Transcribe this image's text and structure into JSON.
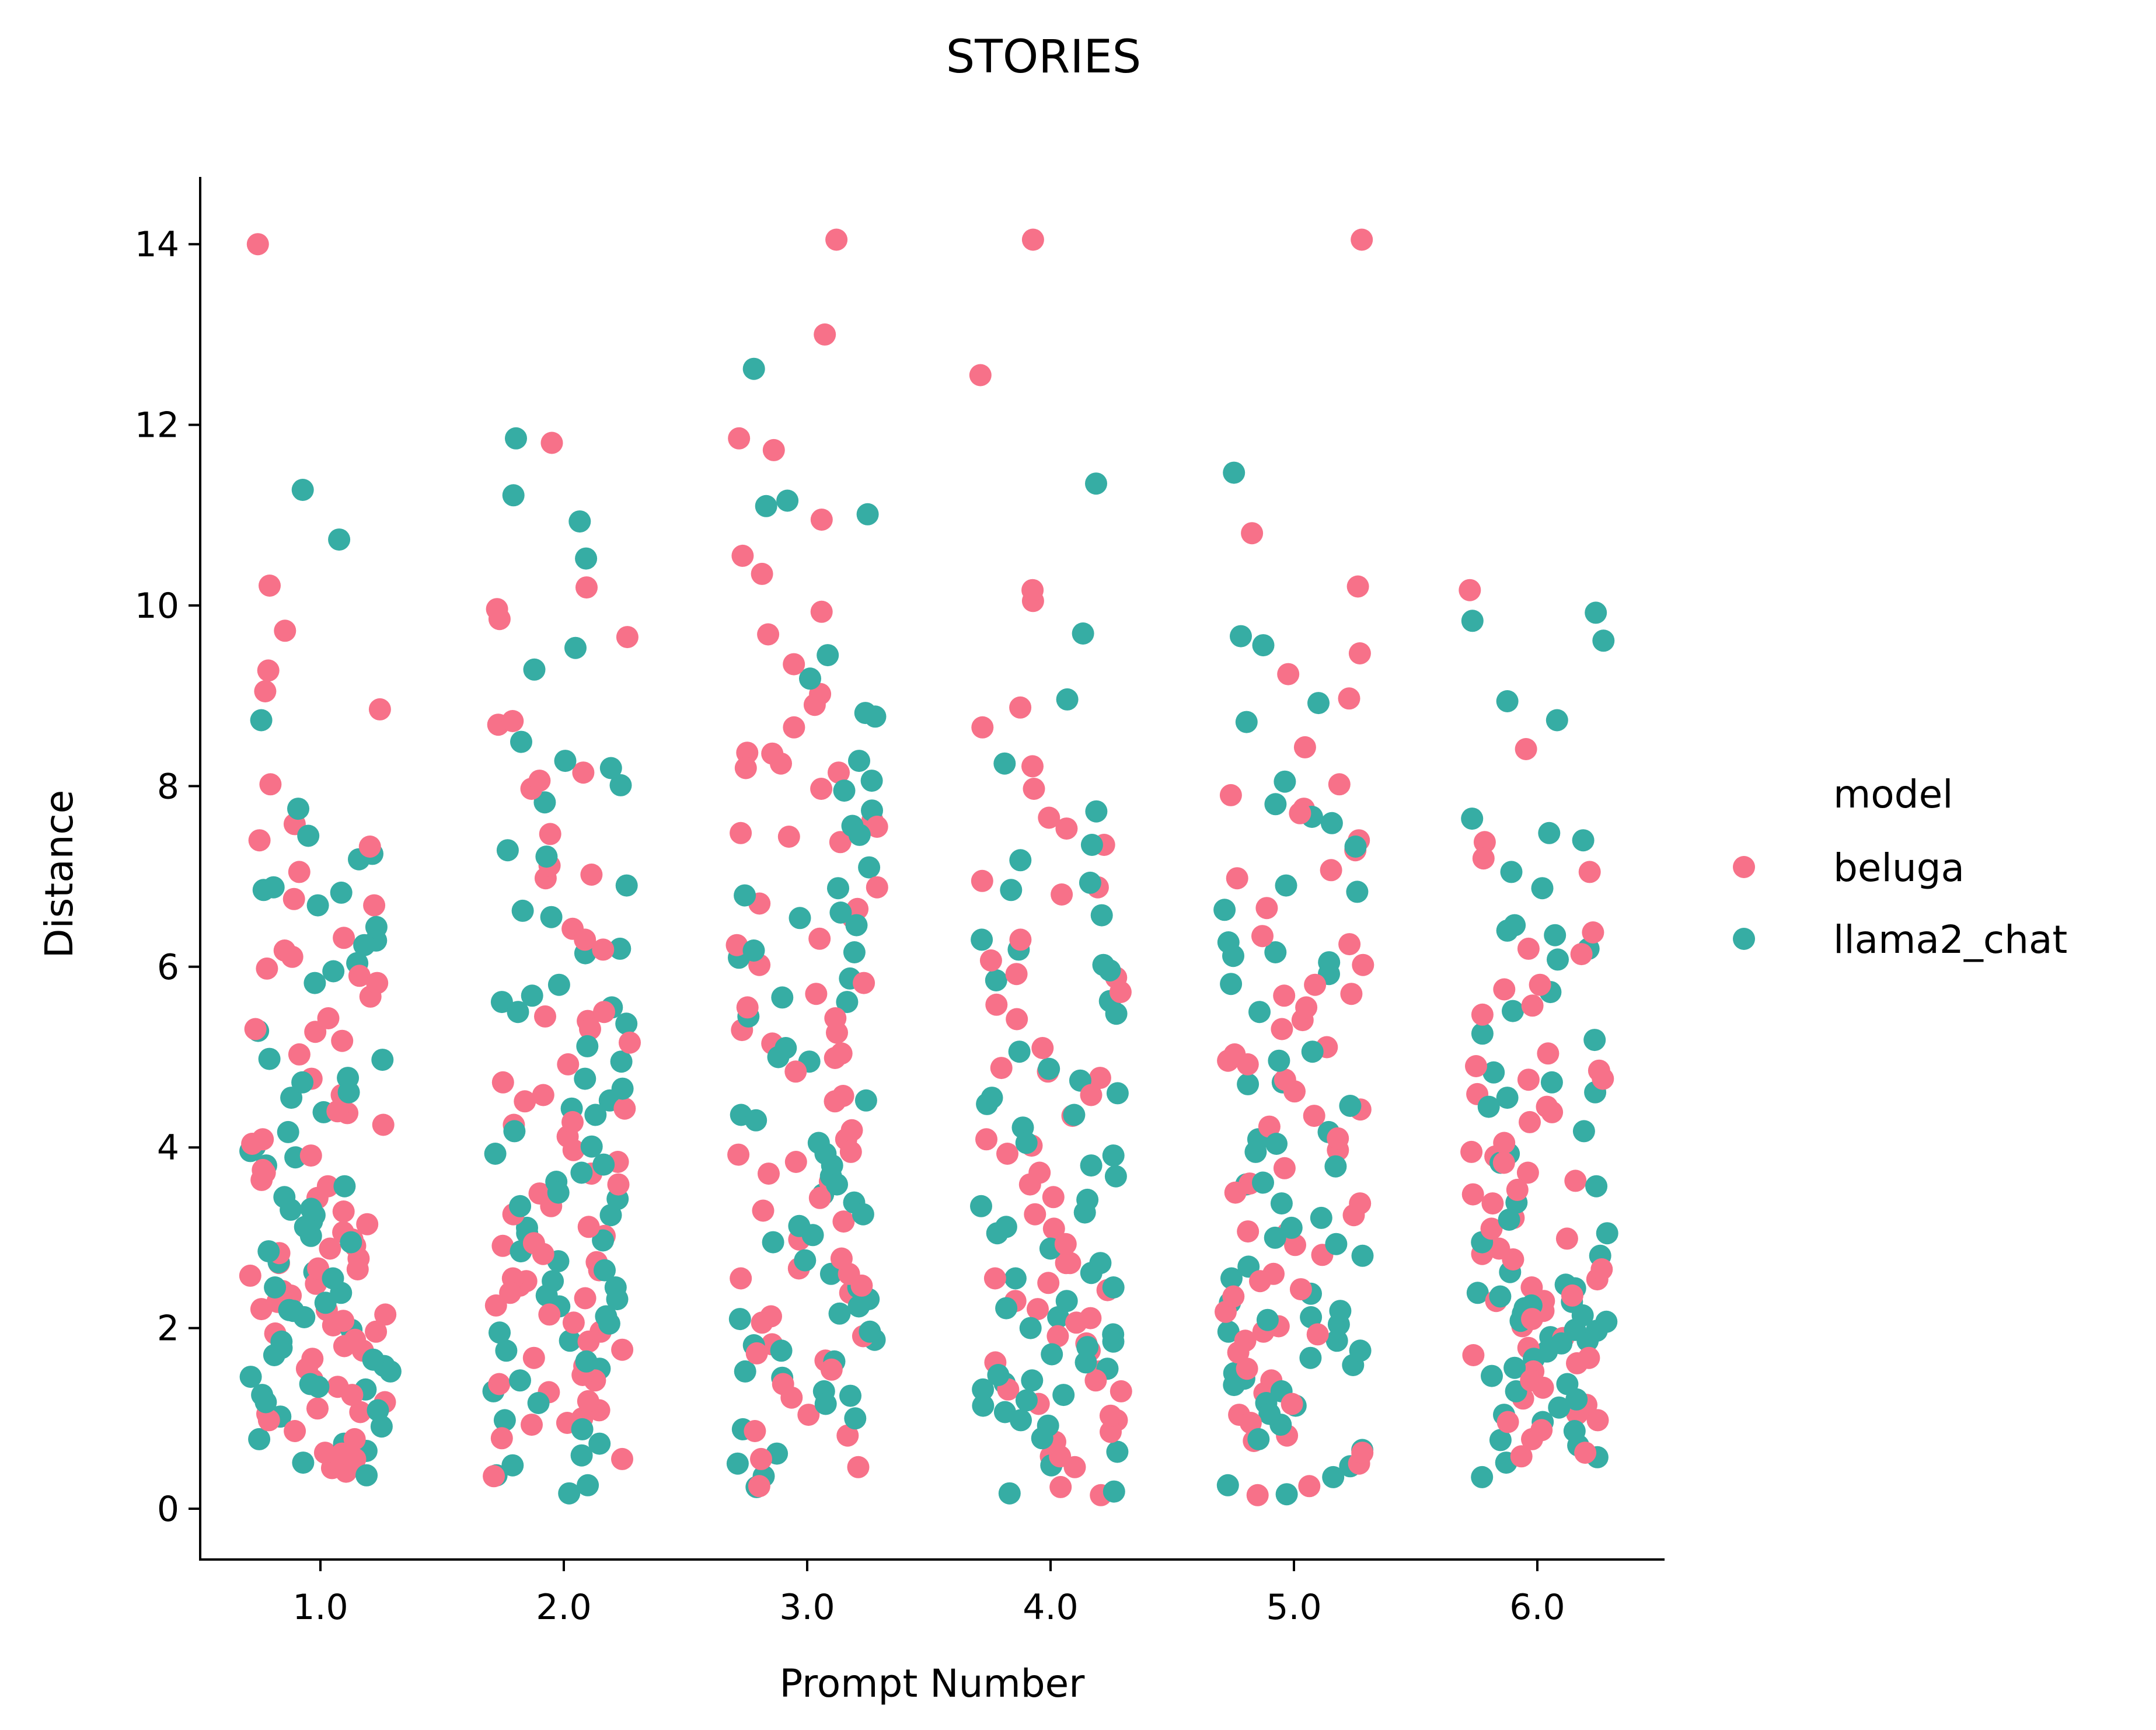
{
  "chart_data": {
    "type": "scatter",
    "title": "STORIES",
    "xlabel": "Prompt Number",
    "ylabel": "Distance",
    "categories": [
      "1.0",
      "2.0",
      "3.0",
      "4.0",
      "5.0",
      "6.0"
    ],
    "ylim": [
      -0.55,
      14.75
    ],
    "yticks": [
      0,
      2,
      4,
      6,
      8,
      10,
      12,
      14
    ],
    "grid": false,
    "legend": {
      "title": "model",
      "placement": "right"
    },
    "series": [
      {
        "name": "beluga",
        "color": "#f77189",
        "points_per_category": [
          [
            7.4,
            14.0,
            9.05,
            9.28,
            10.22,
            9.72,
            8.85,
            8.02,
            7.58,
            7.05,
            6.75,
            6.32,
            6.18,
            5.98,
            5.9,
            5.82,
            5.43,
            5.31,
            5.28,
            5.03,
            4.76,
            4.58,
            4.38,
            4.25,
            4.09,
            4.04,
            3.91,
            3.75,
            3.64,
            3.57,
            3.44,
            3.29,
            3.15,
            3.06,
            2.98,
            2.91,
            2.83,
            2.77,
            2.72,
            2.66,
            2.58,
            2.49,
            2.41,
            2.36,
            2.29,
            2.21,
            2.15,
            2.08,
            2.03,
            1.96,
            1.87,
            1.8,
            1.75,
            1.66,
            1.55,
            1.43,
            1.35,
            1.26,
            1.18,
            1.11,
            1.05,
            0.98,
            0.86,
            0.77,
            0.62,
            0.55,
            0.45,
            0.41,
            6.11,
            5.67,
            4.4,
            2.65,
            2.2,
            1.94,
            7.33,
            6.68,
            5.18,
            3.72,
            2.88,
            1.07,
            0.61
          ],
          [
            7.02,
            11.8,
            10.2,
            9.96,
            9.65,
            8.72,
            8.68,
            8.15,
            8.06,
            7.97,
            7.12,
            6.98,
            6.42,
            6.3,
            6.2,
            5.5,
            5.45,
            5.4,
            5.31,
            5.16,
            4.92,
            4.72,
            4.58,
            4.51,
            4.43,
            4.25,
            4.12,
            3.97,
            3.84,
            3.71,
            3.59,
            3.49,
            3.35,
            3.26,
            3.12,
            3.02,
            2.91,
            2.82,
            2.73,
            2.64,
            2.55,
            2.47,
            2.39,
            2.33,
            2.25,
            2.15,
            2.06,
            1.96,
            1.85,
            1.76,
            1.67,
            1.58,
            1.48,
            1.38,
            1.29,
            1.19,
            1.09,
            0.95,
            0.93,
            0.78,
            0.55,
            0.36,
            1.0,
            2.94,
            4.28,
            6.19,
            7.47,
            9.85,
            1.42,
            2.52
          ],
          [
            14.05,
            13.0,
            11.85,
            11.72,
            10.95,
            10.55,
            10.35,
            9.93,
            9.68,
            9.35,
            9.02,
            8.9,
            8.65,
            8.37,
            8.36,
            8.25,
            8.2,
            8.15,
            7.97,
            7.62,
            7.55,
            7.48,
            7.44,
            7.38,
            6.88,
            6.7,
            6.64,
            6.31,
            6.24,
            6.02,
            5.82,
            5.7,
            5.43,
            5.3,
            5.27,
            5.15,
            5.04,
            4.99,
            4.84,
            4.57,
            4.51,
            4.19,
            4.09,
            3.92,
            3.84,
            3.71,
            3.62,
            3.44,
            3.3,
            3.18,
            2.98,
            2.66,
            2.6,
            2.55,
            2.47,
            2.39,
            2.13,
            2.06,
            1.91,
            1.82,
            1.72,
            1.54,
            1.38,
            1.23,
            1.04,
            0.86,
            0.81,
            0.55,
            0.46,
            0.25,
            3.95,
            2.77,
            6.54,
            5.55,
            1.64
          ],
          [
            14.05,
            12.55,
            10.17,
            10.05,
            8.87,
            8.65,
            8.22,
            7.97,
            7.65,
            7.53,
            7.35,
            6.88,
            6.8,
            6.3,
            6.07,
            5.92,
            5.72,
            5.58,
            5.42,
            5.1,
            4.88,
            4.84,
            4.77,
            4.58,
            4.35,
            4.09,
            3.93,
            3.72,
            3.45,
            3.26,
            3.1,
            2.93,
            2.72,
            2.55,
            2.5,
            2.42,
            2.3,
            2.21,
            2.11,
            1.91,
            1.83,
            1.75,
            1.62,
            1.52,
            1.42,
            1.3,
            1.16,
            1.03,
            0.85,
            0.74,
            0.58,
            0.46,
            0.24,
            0.15,
            0.58,
            2.72,
            4.02,
            5.88,
            6.95,
            3.59,
            1.32,
            0.98,
            2.06
          ],
          [
            14.05,
            10.8,
            10.21,
            9.47,
            9.24,
            8.97,
            8.43,
            8.02,
            7.9,
            7.75,
            7.7,
            7.4,
            7.29,
            7.07,
            6.98,
            6.65,
            6.34,
            6.25,
            6.02,
            5.8,
            5.68,
            5.55,
            5.41,
            5.31,
            5.11,
            5.03,
            4.92,
            4.75,
            4.62,
            4.42,
            4.35,
            4.23,
            4.1,
            3.97,
            3.77,
            3.6,
            3.5,
            3.38,
            3.25,
            3.07,
            2.92,
            2.81,
            2.6,
            2.52,
            2.43,
            2.35,
            2.18,
            2.02,
            1.93,
            1.86,
            1.73,
            1.55,
            1.42,
            1.28,
            1.16,
            1.04,
            0.95,
            0.81,
            0.75,
            0.62,
            0.5,
            0.25,
            0.15,
            4.96,
            3.05,
            1.96,
            5.7
          ],
          [
            10.17,
            8.41,
            7.38,
            7.2,
            7.05,
            6.38,
            6.2,
            6.14,
            5.8,
            5.75,
            5.57,
            5.47,
            5.04,
            4.9,
            4.85,
            4.76,
            4.59,
            4.45,
            4.39,
            4.28,
            4.05,
            3.95,
            3.9,
            3.83,
            3.72,
            3.63,
            3.53,
            3.48,
            3.38,
            3.22,
            3.1,
            2.99,
            2.88,
            2.76,
            2.65,
            2.54,
            2.45,
            2.36,
            2.3,
            2.19,
            2.1,
            2.02,
            1.89,
            1.78,
            1.7,
            1.61,
            1.52,
            1.42,
            1.34,
            1.22,
            1.15,
            1.05,
            0.98,
            0.87,
            0.77,
            0.62,
            0.58,
            4.75,
            2.3,
            0.96,
            1.67,
            2.82
          ]
        ]
      },
      {
        "name": "llama2_chat",
        "color": "#36ada4",
        "points_per_category": [
          [
            11.28,
            10.73,
            8.73,
            7.75,
            7.45,
            7.25,
            7.19,
            6.88,
            6.85,
            6.82,
            6.68,
            6.44,
            6.29,
            6.24,
            6.04,
            5.95,
            5.82,
            5.29,
            4.97,
            4.77,
            4.72,
            4.61,
            4.55,
            4.39,
            4.17,
            4.01,
            3.96,
            3.89,
            3.8,
            3.57,
            3.45,
            3.32,
            3.25,
            3.18,
            3.12,
            3.02,
            2.95,
            2.85,
            2.73,
            2.62,
            2.55,
            2.45,
            2.39,
            2.28,
            2.2,
            2.12,
            1.98,
            1.85,
            1.78,
            1.7,
            1.65,
            1.58,
            1.52,
            1.46,
            1.38,
            1.32,
            1.26,
            1.18,
            1.09,
            1.02,
            0.91,
            0.77,
            0.72,
            0.64,
            0.51,
            0.37,
            3.31,
            4.98,
            1.35,
            2.19
          ],
          [
            11.85,
            11.22,
            10.93,
            10.52,
            9.53,
            9.29,
            8.28,
            8.2,
            8.01,
            7.82,
            7.29,
            7.22,
            6.9,
            6.62,
            6.55,
            6.2,
            6.15,
            5.68,
            5.61,
            5.55,
            5.5,
            5.37,
            5.12,
            4.95,
            4.76,
            4.65,
            4.52,
            4.43,
            4.36,
            4.18,
            4.01,
            3.81,
            3.72,
            3.62,
            3.5,
            3.43,
            3.35,
            3.25,
            3.11,
            3.05,
            2.97,
            2.85,
            2.74,
            2.64,
            2.52,
            2.45,
            2.36,
            2.24,
            2.13,
            2.05,
            1.95,
            1.86,
            1.75,
            1.63,
            1.55,
            1.42,
            1.3,
            1.17,
            0.98,
            0.88,
            0.72,
            0.59,
            0.48,
            0.37,
            0.26,
            0.17,
            8.49,
            5.8,
            3.93,
            2.32
          ],
          [
            12.62,
            11.1,
            11.16,
            11.01,
            9.45,
            9.19,
            8.77,
            8.81,
            8.28,
            7.95,
            7.73,
            7.56,
            7.46,
            7.1,
            6.87,
            6.6,
            6.54,
            6.46,
            6.18,
            6.16,
            6.1,
            5.87,
            5.66,
            5.61,
            5.45,
            5.1,
            4.95,
            4.52,
            4.36,
            4.3,
            4.05,
            3.93,
            3.8,
            3.59,
            3.48,
            3.39,
            3.26,
            3.13,
            3.03,
            2.95,
            2.75,
            2.45,
            2.32,
            2.24,
            2.16,
            2.1,
            1.96,
            1.87,
            1.81,
            1.75,
            1.63,
            1.52,
            1.45,
            1.3,
            1.25,
            1.16,
            1.0,
            0.88,
            0.61,
            0.5,
            0.36,
            0.24,
            8.06,
            6.79,
            5.0,
            3.68,
            2.6
          ],
          [
            11.35,
            9.69,
            8.96,
            8.25,
            7.72,
            7.35,
            7.18,
            6.93,
            6.85,
            6.57,
            6.3,
            6.19,
            6.02,
            5.96,
            5.85,
            5.62,
            5.48,
            5.06,
            4.87,
            4.74,
            4.55,
            4.48,
            4.36,
            4.22,
            4.05,
            3.91,
            3.8,
            3.68,
            3.42,
            3.28,
            3.12,
            3.05,
            2.88,
            2.72,
            2.61,
            2.45,
            2.3,
            2.22,
            2.12,
            2.0,
            1.93,
            1.85,
            1.79,
            1.71,
            1.62,
            1.55,
            1.48,
            1.39,
            1.32,
            1.26,
            1.2,
            1.14,
            1.07,
            0.98,
            0.92,
            0.78,
            0.63,
            0.48,
            0.19,
            0.17,
            4.6,
            3.35,
            2.55,
            1.42
          ],
          [
            11.47,
            9.66,
            9.56,
            8.92,
            8.71,
            8.05,
            7.8,
            7.66,
            7.59,
            7.33,
            6.9,
            6.83,
            6.63,
            6.27,
            6.16,
            6.12,
            6.05,
            5.92,
            5.81,
            5.5,
            5.06,
            4.72,
            4.7,
            4.46,
            4.17,
            4.09,
            4.04,
            3.95,
            3.79,
            3.61,
            3.38,
            3.22,
            3.11,
            3.0,
            2.93,
            2.8,
            2.68,
            2.55,
            2.38,
            2.28,
            2.19,
            2.12,
            2.04,
            1.96,
            1.86,
            1.75,
            1.67,
            1.59,
            1.5,
            1.44,
            1.37,
            1.3,
            1.17,
            1.05,
            0.93,
            0.77,
            0.65,
            0.47,
            0.35,
            0.26,
            0.16,
            4.96,
            3.59,
            2.09,
            1.14
          ],
          [
            9.92,
            9.83,
            9.61,
            8.94,
            8.73,
            7.64,
            7.48,
            7.4,
            7.05,
            6.87,
            6.46,
            6.4,
            6.35,
            6.2,
            6.08,
            5.72,
            5.51,
            5.26,
            5.19,
            4.83,
            4.72,
            4.61,
            4.55,
            4.45,
            4.18,
            3.93,
            3.83,
            3.57,
            3.39,
            3.2,
            3.05,
            2.95,
            2.8,
            2.62,
            2.48,
            2.39,
            2.29,
            2.22,
            2.16,
            2.07,
            1.98,
            1.9,
            1.83,
            1.74,
            1.66,
            1.56,
            1.47,
            1.38,
            1.3,
            1.21,
            1.12,
            1.04,
            0.96,
            0.86,
            0.76,
            0.7,
            0.57,
            0.51,
            0.35,
            2.35,
            2.25,
            2.08,
            1.97,
            1.86,
            2.44,
            2.14
          ]
        ]
      }
    ]
  }
}
